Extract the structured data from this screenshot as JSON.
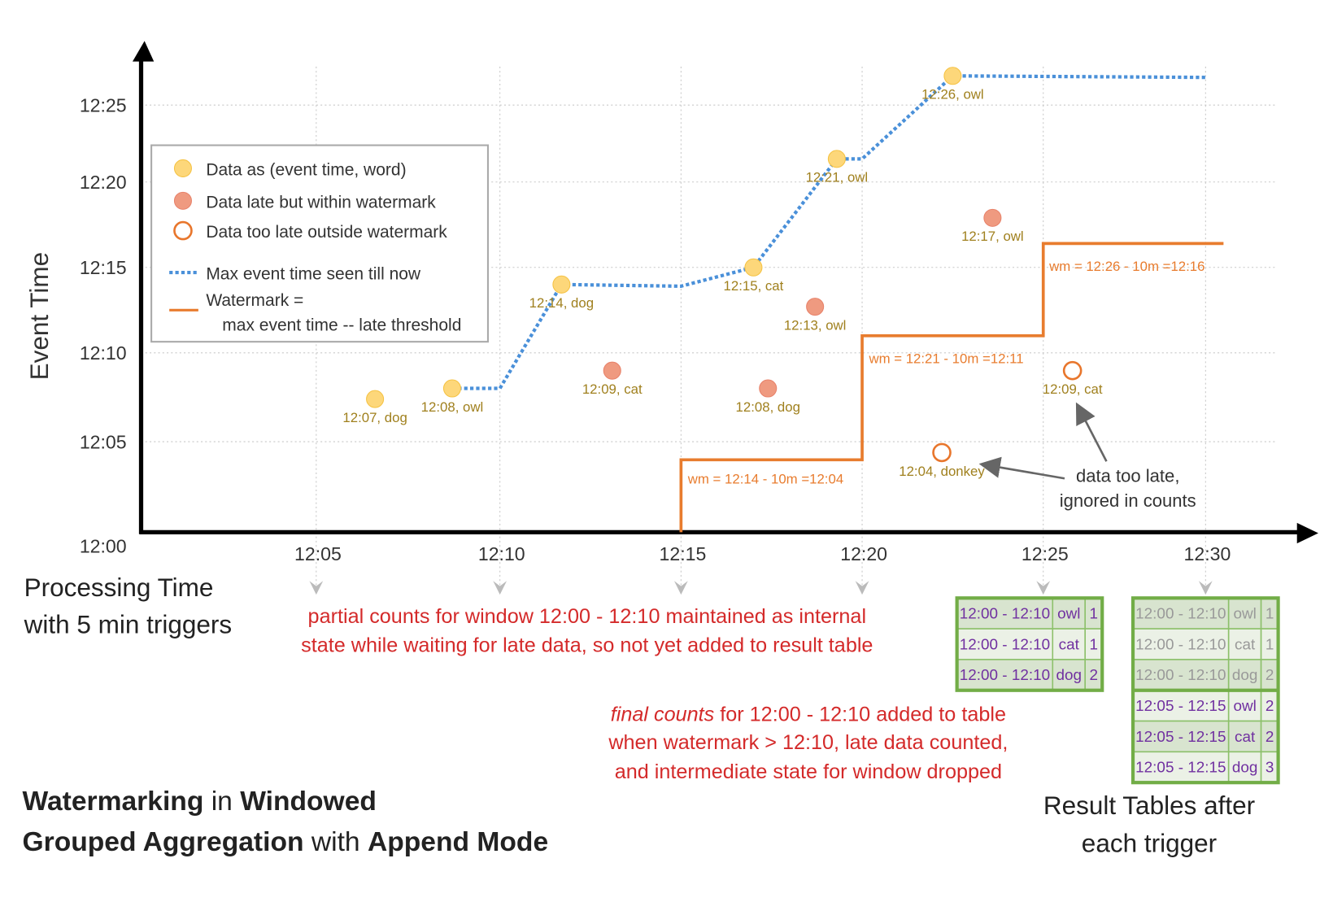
{
  "title": {
    "parts": [
      {
        "text": "Watermarking",
        "bold": true
      },
      {
        "text": " in ",
        "bold": false
      },
      {
        "text": "Windowed",
        "bold": true
      }
    ],
    "parts2": [
      {
        "text": "Grouped Aggregation",
        "bold": true
      },
      {
        "text": " with ",
        "bold": false
      },
      {
        "text": "Append Mode",
        "bold": true
      }
    ],
    "line1_a": "Watermarking",
    "line1_b": " in ",
    "line1_c": "Windowed",
    "line2_a": "Grouped Aggregation",
    "line2_b": " with ",
    "line2_c": "Append Mode"
  },
  "axes": {
    "y_label": "Event Time",
    "x_label_1": "Processing Time",
    "x_label_2": "with 5 min triggers",
    "y_ticks": [
      "12:00",
      "12:05",
      "12:10",
      "12:15",
      "12:20",
      "12:25"
    ],
    "x_ticks": [
      "12:05",
      "12:10",
      "12:15",
      "12:20",
      "12:25",
      "12:30"
    ]
  },
  "legend": {
    "data": "Data as (event time, word)",
    "late": "Data late but within watermark",
    "too_late": "Data too late outside watermark",
    "max": "Max event time seen till now",
    "wm_1": "Watermark =",
    "wm_2": "max event time -- late threshold"
  },
  "colors": {
    "on_time": "#fdd77a",
    "late": "#ef9a80",
    "too_late": "#e8762c",
    "max_line": "#4a90d9",
    "watermark": "#e87c2e",
    "annotation": "#d42a2a",
    "table_border": "#72ad47",
    "table_text": "#7030a0",
    "table_text_old": "#999999"
  },
  "points": [
    {
      "label": "12:07, dog",
      "kind": "on_time",
      "processing_min": 6.6,
      "event_min": 7.4
    },
    {
      "label": "12:08, owl",
      "kind": "on_time",
      "processing_min": 8.7,
      "event_min": 8
    },
    {
      "label": "12:14, dog",
      "kind": "on_time",
      "processing_min": 11.7,
      "event_min": 14
    },
    {
      "label": "12:09, cat",
      "kind": "late",
      "processing_min": 13.1,
      "event_min": 9
    },
    {
      "label": "12:15, cat",
      "kind": "on_time",
      "processing_min": 17.0,
      "event_min": 15
    },
    {
      "label": "12:08, dog",
      "kind": "late",
      "processing_min": 17.4,
      "event_min": 8
    },
    {
      "label": "12:13, owl",
      "kind": "late",
      "processing_min": 18.7,
      "event_min": 12.7
    },
    {
      "label": "12:21, owl",
      "kind": "on_time",
      "processing_min": 19.3,
      "event_min": 21.5
    },
    {
      "label": "12:26, owl",
      "kind": "on_time",
      "processing_min": 22.5,
      "event_min": 26.9
    },
    {
      "label": "12:17, owl",
      "kind": "late",
      "processing_min": 23.6,
      "event_min": 17.9
    },
    {
      "label": "12:04, donkey",
      "kind": "too_late",
      "processing_min": 22.2,
      "event_min": 4.4
    },
    {
      "label": "12:09, cat",
      "kind": "too_late",
      "processing_min": 25.9,
      "event_min": 9
    }
  ],
  "max_event_line": [
    [
      8.7,
      8
    ],
    [
      10,
      8
    ],
    [
      11.7,
      14
    ],
    [
      15,
      13.9
    ],
    [
      17,
      15
    ],
    [
      19.3,
      21.5
    ],
    [
      20,
      21.5
    ],
    [
      22.5,
      26.9
    ],
    [
      30,
      26.8
    ]
  ],
  "watermark_line": [
    [
      15,
      0
    ],
    [
      15,
      4
    ],
    [
      20,
      4
    ],
    [
      20,
      11
    ],
    [
      25,
      11
    ],
    [
      25,
      16.4
    ],
    [
      30.5,
      16.4
    ]
  ],
  "watermark_labels": [
    "wm = 12:14 - 10m =12:04",
    "wm = 12:21 - 10m =12:11",
    "wm = 12:26 - 10m =12:16"
  ],
  "annotations": {
    "partial_1": "partial counts for window 12:00 - 12:10 maintained as internal",
    "partial_2": "state while waiting for late data, so not yet added  to result table",
    "final_em": "final counts",
    "final_1": " for 12:00 - 12:10 added to table",
    "final_2": "when watermark > 12:10, late data counted,",
    "final_3": "and intermediate state for window dropped",
    "too_late_1": "data too late,",
    "too_late_2": "ignored in counts",
    "result_1": "Result Tables after",
    "result_2": "each trigger"
  },
  "result_tables": [
    {
      "trigger": "12:25",
      "rows": [
        {
          "window": "12:00 - 12:10",
          "word": "owl",
          "count": "1",
          "old": false
        },
        {
          "window": "12:00 - 12:10",
          "word": "cat",
          "count": "1",
          "old": false
        },
        {
          "window": "12:00 - 12:10",
          "word": "dog",
          "count": "2",
          "old": false
        }
      ]
    },
    {
      "trigger": "12:30",
      "rows": [
        {
          "window": "12:00 - 12:10",
          "word": "owl",
          "count": "1",
          "old": true
        },
        {
          "window": "12:00 - 12:10",
          "word": "cat",
          "count": "1",
          "old": true
        },
        {
          "window": "12:00 - 12:10",
          "word": "dog",
          "count": "2",
          "old": true
        },
        {
          "window": "12:05 - 12:15",
          "word": "owl",
          "count": "2",
          "old": false
        },
        {
          "window": "12:05 - 12:15",
          "word": "cat",
          "count": "2",
          "old": false
        },
        {
          "window": "12:05 - 12:15",
          "word": "dog",
          "count": "3",
          "old": false
        }
      ]
    }
  ]
}
